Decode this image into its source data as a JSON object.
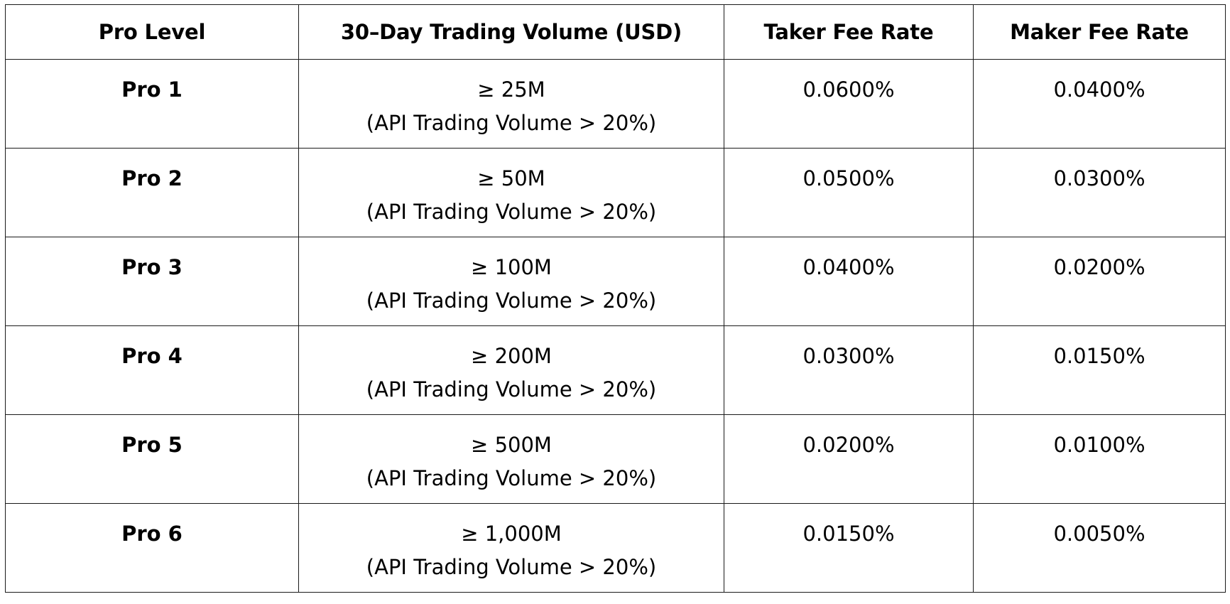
{
  "table": {
    "headers": [
      "Pro Level",
      "30–Day Trading Volume (USD)",
      "Taker Fee Rate",
      "Maker Fee Rate"
    ],
    "rows": [
      {
        "level": "Pro 1",
        "volume": "≥ 25M",
        "volume_note": "(API Trading Volume > 20%)",
        "taker": "0.0600%",
        "maker": "0.0400%"
      },
      {
        "level": "Pro 2",
        "volume": "≥ 50M",
        "volume_note": "(API Trading Volume > 20%)",
        "taker": "0.0500%",
        "maker": "0.0300%"
      },
      {
        "level": "Pro 3",
        "volume": "≥ 100M",
        "volume_note": "(API Trading Volume > 20%)",
        "taker": "0.0400%",
        "maker": "0.0200%"
      },
      {
        "level": "Pro 4",
        "volume": "≥ 200M",
        "volume_note": "(API Trading Volume > 20%)",
        "taker": "0.0300%",
        "maker": "0.0150%"
      },
      {
        "level": "Pro 5",
        "volume": "≥ 500M",
        "volume_note": "(API Trading Volume > 20%)",
        "taker": "0.0200%",
        "maker": "0.0100%"
      },
      {
        "level": "Pro 6",
        "volume": "≥ 1,000M",
        "volume_note": "(API Trading Volume > 20%)",
        "taker": "0.0150%",
        "maker": "0.0050%"
      }
    ]
  }
}
